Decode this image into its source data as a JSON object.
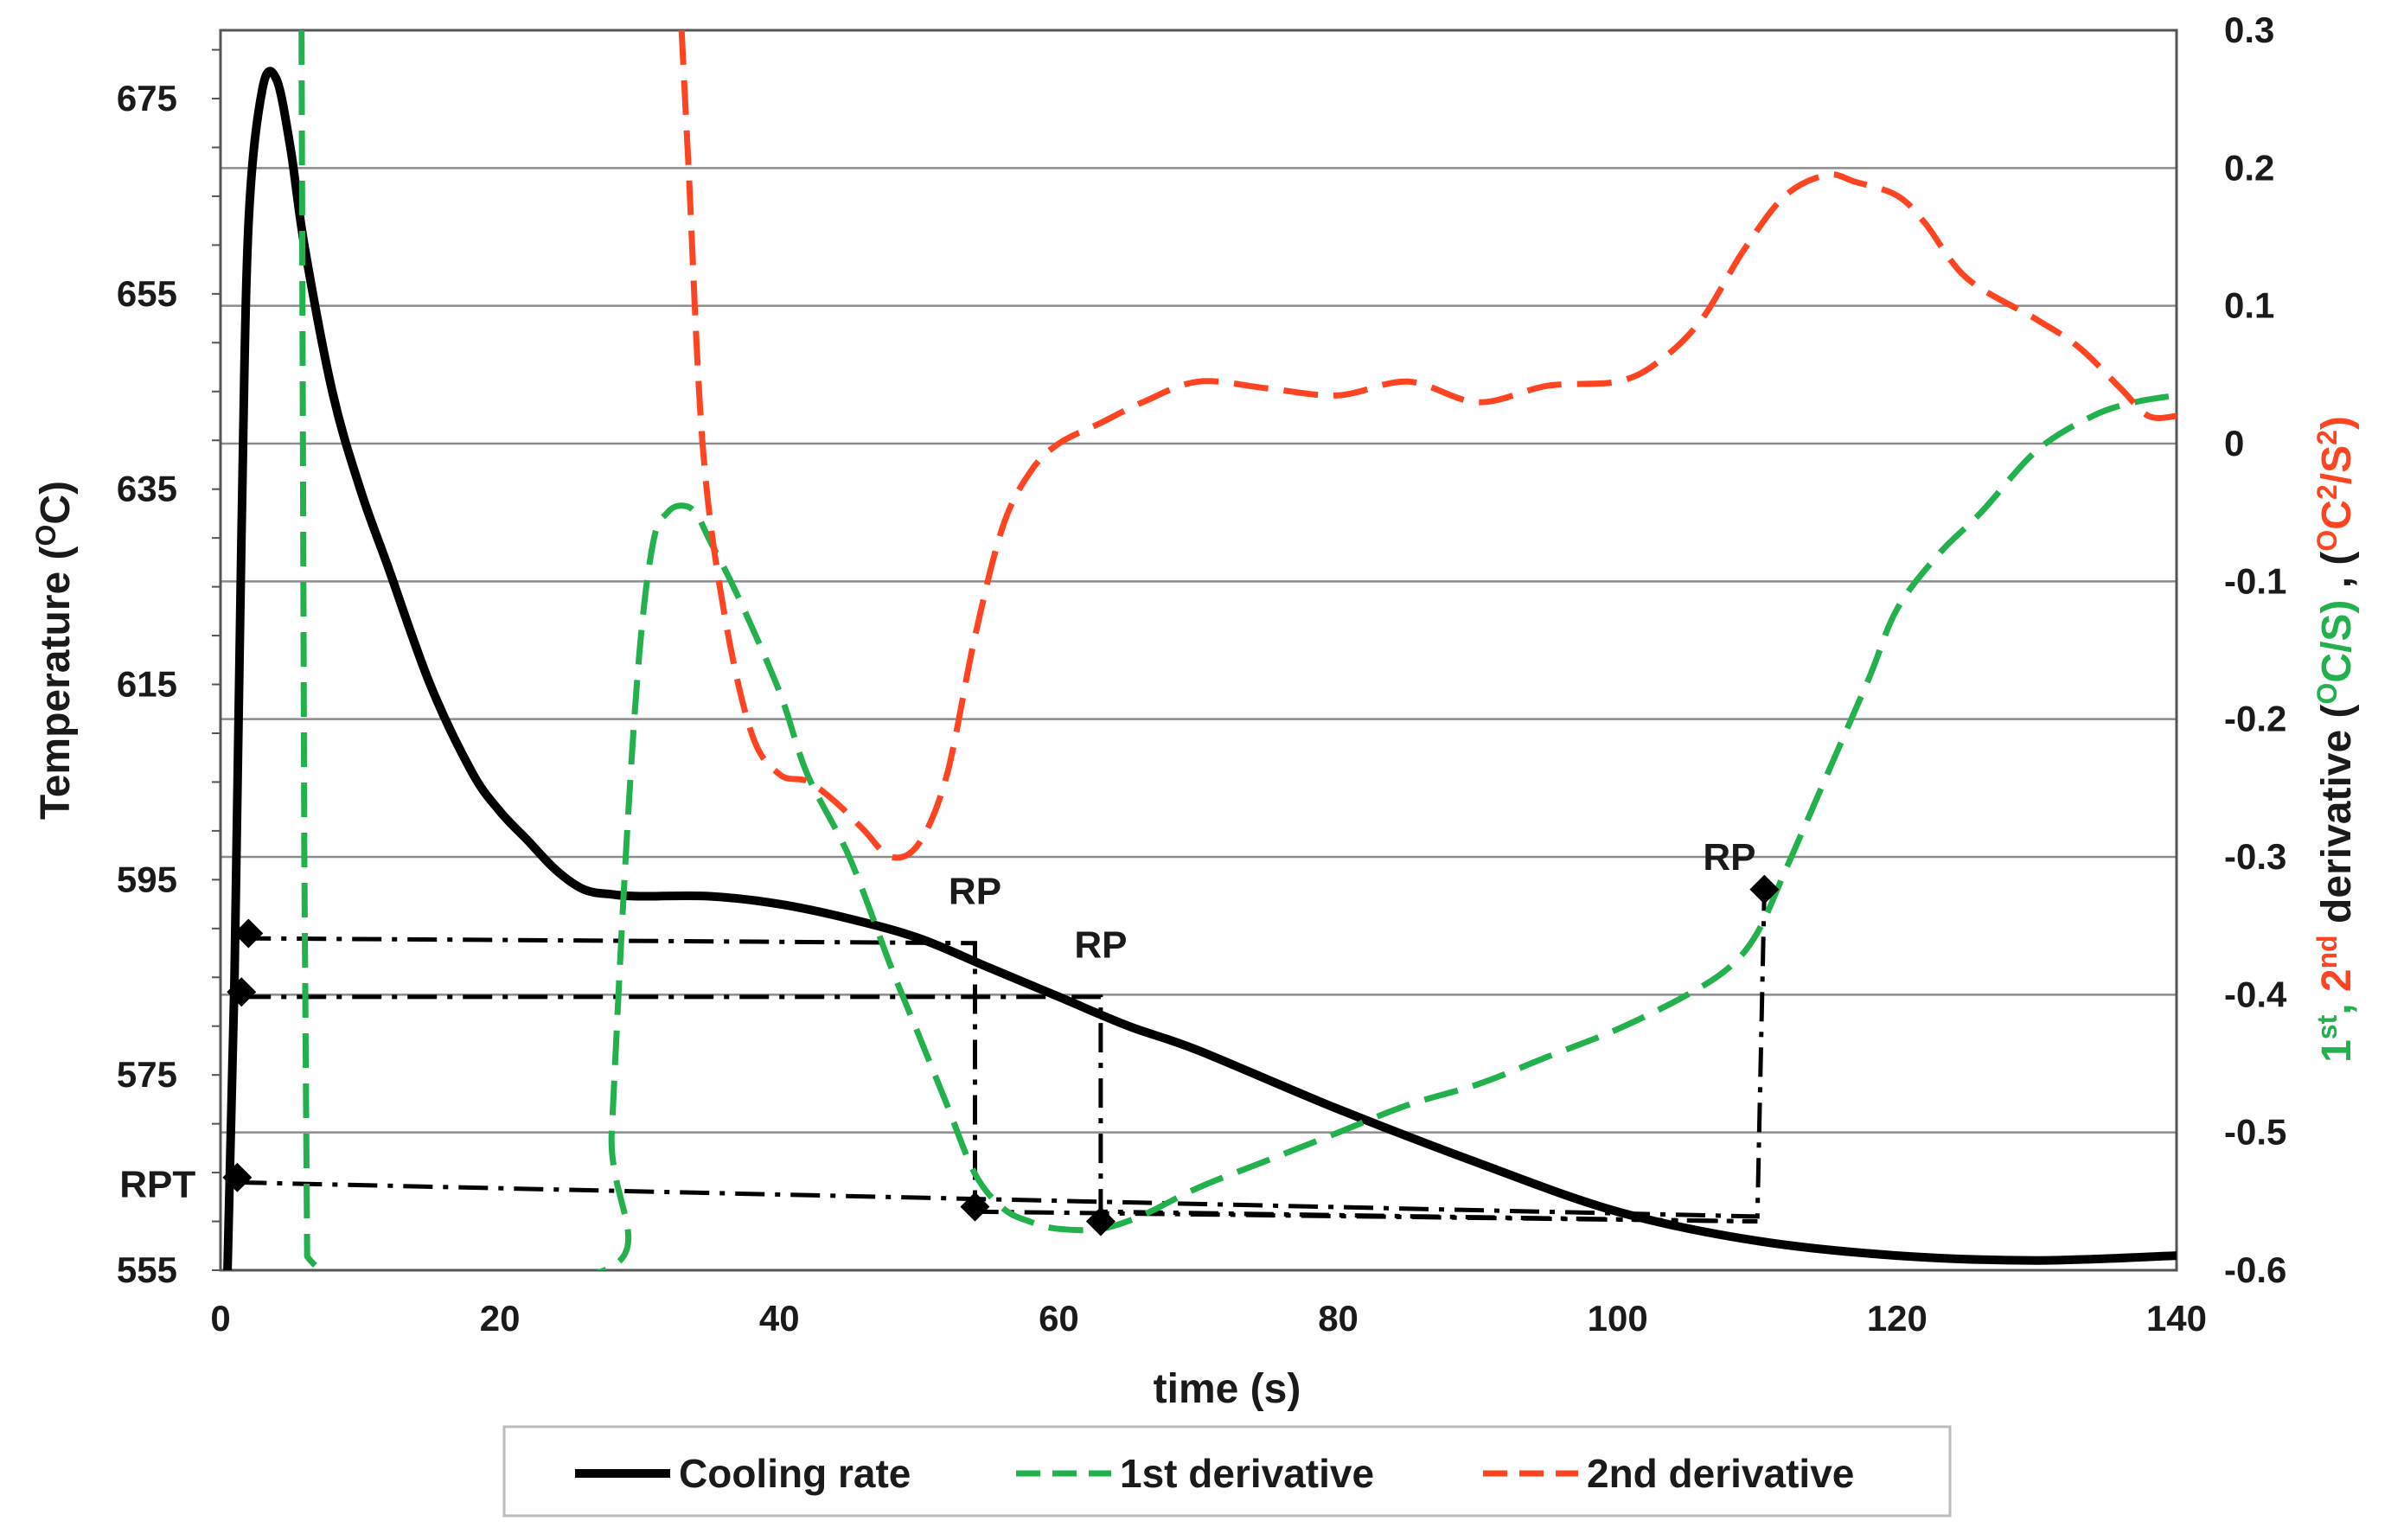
{
  "chart_data": {
    "type": "line",
    "title": "",
    "xlabel": "time (s)",
    "ylabel": "Temperature (OC)",
    "ylabel_parts": {
      "pre": "Temperature (",
      "sup": "O",
      "post": "C)"
    },
    "y2label": "1st, 2nd derivative (OC/S) , (OC2/S2)",
    "y2label_parts": [
      {
        "text": "1",
        "color": "#22b14c",
        "sup": false
      },
      {
        "text": "st",
        "color": "#22b14c",
        "sup": true
      },
      {
        "text": ", ",
        "color": "#22b14c",
        "sup": false
      },
      {
        "text": "2",
        "color": "#ff4422",
        "sup": false
      },
      {
        "text": "nd",
        "color": "#ff4422",
        "sup": true
      },
      {
        "text": " derivative (",
        "color": "#1a1a1a",
        "sup": false
      },
      {
        "text": "O",
        "color": "#22b14c",
        "sup": true
      },
      {
        "text": "C/S)",
        "color": "#22b14c",
        "sup": false
      },
      {
        "text": " , (",
        "color": "#1a1a1a",
        "sup": false
      },
      {
        "text": "O",
        "color": "#ff4422",
        "sup": true
      },
      {
        "text": "C",
        "color": "#ff4422",
        "sup": false
      },
      {
        "text": "2",
        "color": "#ff4422",
        "sup": true
      },
      {
        "text": "/S",
        "color": "#ff4422",
        "sup": false
      },
      {
        "text": "2",
        "color": "#ff4422",
        "sup": true
      },
      {
        "text": ")",
        "color": "#ff4422",
        "sup": false
      }
    ],
    "xlim": [
      0,
      140
    ],
    "ylim": [
      555,
      682
    ],
    "y2lim": [
      -0.6,
      0.3
    ],
    "xticks": [
      0,
      20,
      40,
      60,
      80,
      100,
      120,
      140
    ],
    "yticks": [
      555,
      575,
      595,
      615,
      635,
      655,
      675
    ],
    "y2ticks": [
      -0.6,
      -0.5,
      -0.4,
      -0.3,
      -0.2,
      -0.1,
      0,
      0.1,
      0.2,
      0.3
    ],
    "y2tick_labels": [
      "-0.6",
      "-0.5",
      "-0.4",
      "-0.3",
      "-0.2",
      "-0.1",
      "0",
      "0.1",
      "0.2",
      "0.3"
    ],
    "grid": "horizontal",
    "legend_position": "bottom",
    "colors": {
      "cooling": "#000000",
      "first": "#22b14c",
      "second": "#ff4422",
      "guide": "#000000",
      "grid": "#8c8c8c"
    },
    "series": [
      {
        "name": "Cooling rate",
        "axis": "left",
        "style": "solid",
        "x": [
          0.5,
          1,
          1.5,
          2,
          3,
          4,
          5,
          6,
          8,
          10,
          12,
          15,
          18,
          20,
          22,
          24,
          26,
          28,
          30,
          35,
          40,
          45,
          50,
          55,
          60,
          65,
          70,
          80,
          90,
          100,
          110,
          120,
          130,
          140
        ],
        "y": [
          555,
          585,
          630,
          662,
          676,
          677,
          670,
          660,
          645,
          635,
          627,
          615,
          606,
          602,
          599,
          596,
          594,
          593.5,
          593.3,
          593.3,
          592.5,
          591,
          589,
          586,
          583,
          580,
          577.5,
          571.5,
          566,
          561,
          558,
          556.5,
          556,
          556.5
        ]
      },
      {
        "name": "1st derivative",
        "axis": "right",
        "style": "dashed",
        "x": [
          5.8,
          6,
          6.2,
          27.5,
          28,
          29,
          30,
          31,
          32,
          33,
          34,
          35,
          37,
          40,
          42,
          45,
          48,
          50,
          52,
          54,
          56,
          58,
          60,
          63,
          66,
          70,
          75,
          80,
          85,
          90,
          95,
          100,
          105,
          108,
          110,
          112,
          115,
          118,
          120,
          123,
          126,
          130,
          134,
          137,
          140
        ],
        "y": [
          0.3,
          -0.3,
          -0.59,
          -0.6,
          -0.5,
          -0.3,
          -0.15,
          -0.07,
          -0.05,
          -0.045,
          -0.05,
          -0.07,
          -0.11,
          -0.18,
          -0.24,
          -0.3,
          -0.38,
          -0.43,
          -0.48,
          -0.53,
          -0.555,
          -0.565,
          -0.57,
          -0.57,
          -0.56,
          -0.54,
          -0.52,
          -0.5,
          -0.48,
          -0.465,
          -0.445,
          -0.425,
          -0.4,
          -0.38,
          -0.355,
          -0.31,
          -0.24,
          -0.17,
          -0.12,
          -0.08,
          -0.05,
          -0.005,
          0.02,
          0.03,
          0.035
        ]
      },
      {
        "name": "2nd derivative",
        "axis": "right",
        "style": "dashed",
        "x": [
          33,
          33.5,
          34.5,
          36,
          38,
          40,
          42,
          44,
          46,
          48,
          50,
          52,
          54,
          56,
          58,
          60,
          63,
          66,
          70,
          75,
          80,
          85,
          90,
          95,
          100,
          103,
          106,
          109,
          112,
          115,
          117,
          120,
          122,
          125,
          130,
          133,
          136,
          138,
          140
        ],
        "y": [
          0.3,
          0.2,
          0.0,
          -0.12,
          -0.21,
          -0.24,
          -0.245,
          -0.26,
          -0.28,
          -0.3,
          -0.29,
          -0.24,
          -0.14,
          -0.06,
          -0.02,
          0.0,
          0.015,
          0.03,
          0.045,
          0.04,
          0.035,
          0.045,
          0.03,
          0.042,
          0.045,
          0.06,
          0.09,
          0.14,
          0.18,
          0.195,
          0.19,
          0.18,
          0.16,
          0.12,
          0.09,
          0.07,
          0.04,
          0.02,
          0.02
        ]
      }
    ],
    "guides": [
      {
        "points": [
          [
            1.5,
            589
          ],
          [
            54,
            588.5
          ],
          [
            54,
            561
          ],
          [
            110,
            560
          ]
        ]
      },
      {
        "points": [
          [
            1.5,
            583
          ],
          [
            63,
            583
          ],
          [
            63,
            561
          ],
          [
            110,
            560
          ]
        ]
      },
      {
        "points": [
          [
            1.2,
            564
          ],
          [
            110,
            560.5
          ],
          [
            110.5,
            594
          ]
        ]
      }
    ],
    "markers": [
      {
        "x": 2,
        "y": 589.5,
        "axis": "left"
      },
      {
        "x": 1.5,
        "y": 583.5,
        "axis": "left"
      },
      {
        "x": 1.2,
        "y": 564.5,
        "axis": "left"
      },
      {
        "x": 54,
        "y": 561.5,
        "axis": "left"
      },
      {
        "x": 63,
        "y": 560,
        "axis": "left"
      },
      {
        "x": 110.5,
        "y": 594,
        "axis": "left"
      }
    ],
    "annotations": [
      {
        "text": "RP",
        "x": 54,
        "y": 592.5,
        "axis": "left",
        "anchor": "middle"
      },
      {
        "text": "RP",
        "x": 63,
        "y": 587,
        "axis": "left",
        "anchor": "middle"
      },
      {
        "text": "RP",
        "x": 108,
        "y": 596,
        "axis": "left",
        "anchor": "middle"
      },
      {
        "text": "RPT",
        "x": -4.5,
        "y": 562.5,
        "axis": "left",
        "anchor": "middle"
      }
    ],
    "legend": [
      {
        "label": "Cooling rate",
        "style": "solid",
        "color": "#000000"
      },
      {
        "label": "1st derivative",
        "style": "dashed",
        "color": "#22b14c"
      },
      {
        "label": "2nd derivative",
        "style": "dashed",
        "color": "#ff4422"
      }
    ]
  }
}
